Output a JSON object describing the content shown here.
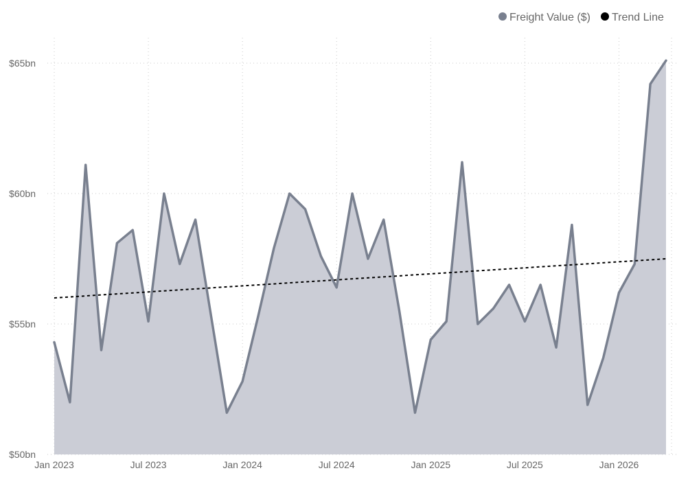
{
  "chart_data": {
    "type": "area",
    "legend": {
      "placement": "top-right",
      "items": [
        {
          "label": "Freight Value ($)",
          "color": "#79808f",
          "marker": "circle"
        },
        {
          "label": "Trend Line",
          "color": "#000000",
          "marker": "circle"
        }
      ]
    },
    "x_ticks": [
      "Jan 2023",
      "Jul 2023",
      "Jan 2024",
      "Jul 2024",
      "Jan 2025",
      "Jul 2025",
      "Jan 2026"
    ],
    "y_ticks": [
      "$50bn",
      "$55bn",
      "$60bn",
      "$65bn"
    ],
    "ylim": [
      50,
      66.5
    ],
    "grid": true,
    "series": [
      {
        "name": "Freight Value ($)",
        "color": "#79808f",
        "fill": "#cbcdd6",
        "x": [
          "2023-01",
          "2023-02",
          "2023-03",
          "2023-04",
          "2023-05",
          "2023-06",
          "2023-07",
          "2023-08",
          "2023-09",
          "2023-10",
          "2023-11",
          "2023-12",
          "2024-01",
          "2024-02",
          "2024-03",
          "2024-04",
          "2024-05",
          "2024-06",
          "2024-07",
          "2024-08",
          "2024-09",
          "2024-10",
          "2024-11",
          "2024-12",
          "2025-01",
          "2025-02",
          "2025-03",
          "2025-04",
          "2025-05",
          "2025-06",
          "2025-07",
          "2025-08",
          "2025-09",
          "2025-10",
          "2025-11",
          "2025-12",
          "2026-01",
          "2026-02",
          "2026-03",
          "2026-04"
        ],
        "values": [
          54.3,
          52.0,
          61.1,
          54.0,
          58.1,
          58.6,
          55.1,
          60.0,
          57.3,
          59.0,
          55.3,
          51.6,
          52.8,
          55.3,
          57.9,
          60.0,
          59.4,
          57.6,
          56.4,
          60.0,
          57.5,
          59.0,
          55.5,
          51.6,
          54.4,
          55.1,
          61.2,
          55.0,
          55.6,
          56.5,
          55.1,
          56.5,
          54.1,
          58.8,
          51.9,
          53.7,
          56.2,
          57.3,
          64.2,
          65.1
        ]
      },
      {
        "name": "Trend Line",
        "color": "#000000",
        "dashed": true,
        "x": [
          "2023-01",
          "2026-04"
        ],
        "values": [
          56.0,
          57.5
        ]
      }
    ]
  }
}
